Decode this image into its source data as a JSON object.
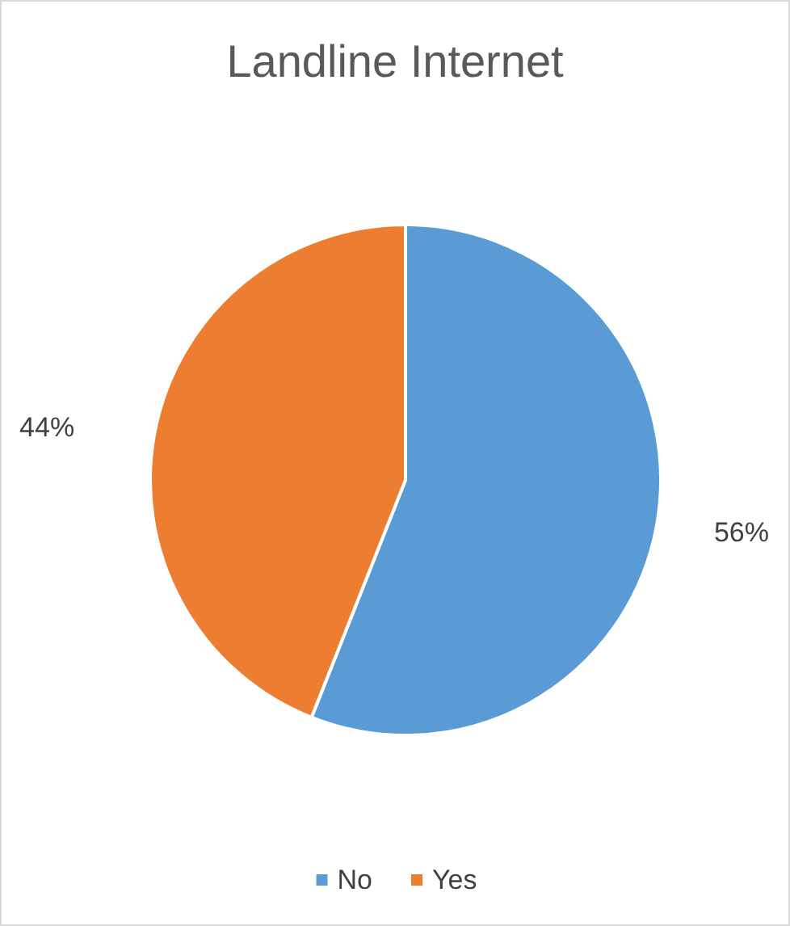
{
  "chart_data": {
    "type": "pie",
    "title": "Landline Internet",
    "categories": [
      "No",
      "Yes"
    ],
    "values": [
      56,
      44
    ],
    "colors": [
      "#5b9bd5",
      "#ed7d31"
    ],
    "value_labels": [
      "56%",
      "44%"
    ],
    "legend": "bottom"
  }
}
